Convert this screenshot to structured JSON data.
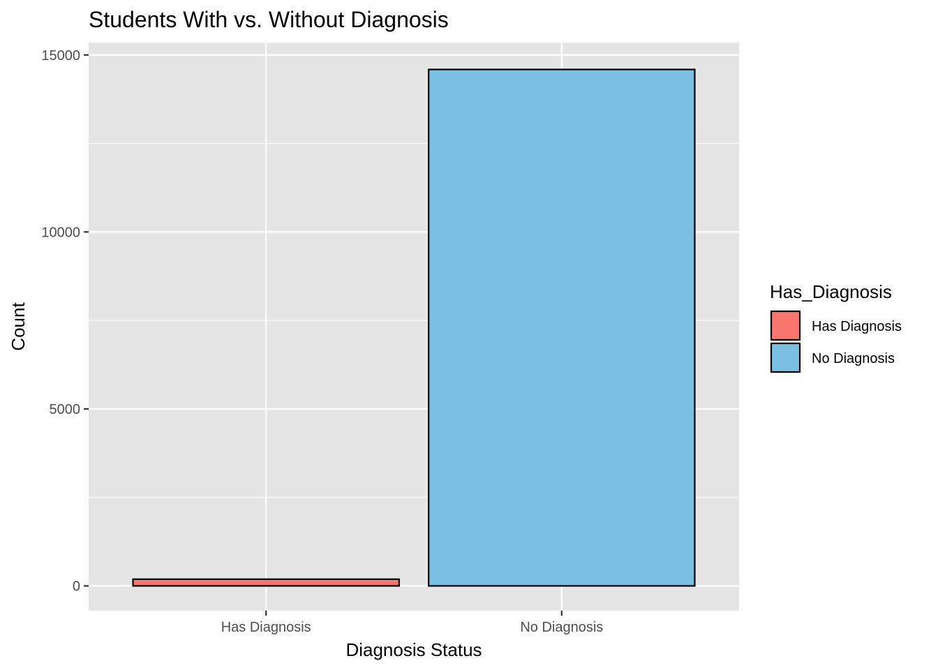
{
  "chart_data": {
    "type": "bar",
    "title": "Students With vs. Without Diagnosis",
    "xlabel": "Diagnosis Status",
    "ylabel": "Count",
    "categories": [
      "Has Diagnosis",
      "No Diagnosis"
    ],
    "values": [
      190,
      14590
    ],
    "colors": [
      "#F8766D",
      "#7AC0E3"
    ],
    "bar_outline": "#000000",
    "ylim": [
      -700,
      15350
    ],
    "yticks": [
      0,
      5000,
      10000,
      15000
    ],
    "ytick_labels": [
      "0",
      "5000",
      "10000",
      "15000"
    ],
    "grid": true,
    "panel_background": "#E5E5E5",
    "grid_color": "#FFFFFF",
    "legend": {
      "title": "Has_Diagnosis",
      "placement": "right",
      "items": [
        {
          "label": "Has Diagnosis",
          "color": "#F8766D"
        },
        {
          "label": "No Diagnosis",
          "color": "#7AC0E3"
        }
      ]
    }
  }
}
